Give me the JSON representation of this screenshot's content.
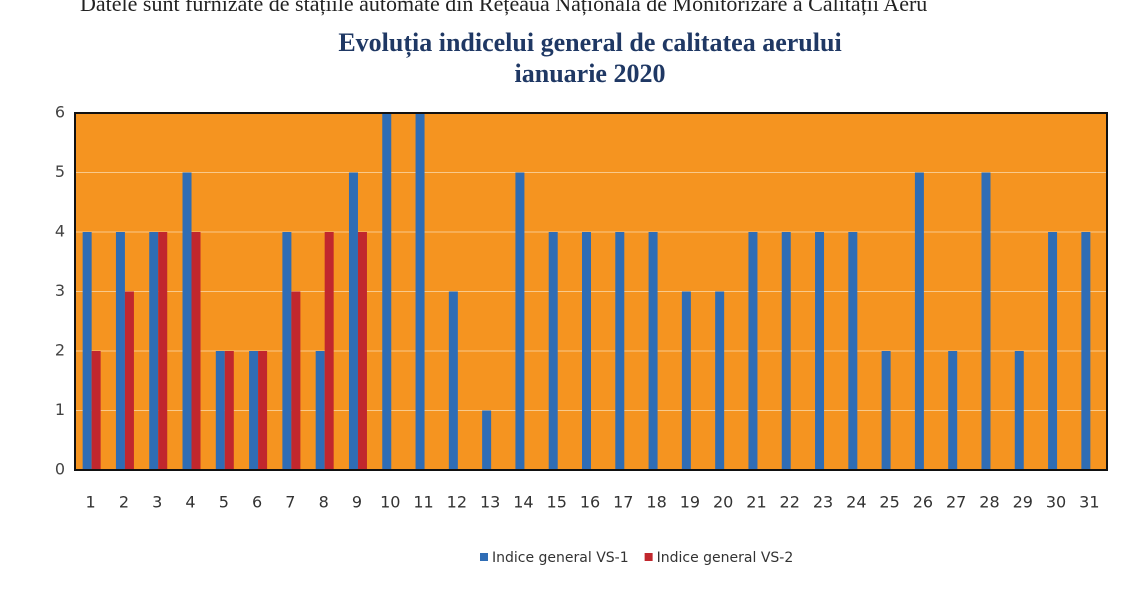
{
  "header_text": "Datele sunt furnizate de stațiile automate din Rețeaua Națională de Monitorizare a Calității Aeru",
  "chart_data": {
    "type": "bar",
    "title": "Evoluția indicelui general de calitatea aerului",
    "subtitle": "ianuarie 2020",
    "categories": [
      "1",
      "2",
      "3",
      "4",
      "5",
      "6",
      "7",
      "8",
      "9",
      "10",
      "11",
      "12",
      "13",
      "14",
      "15",
      "16",
      "17",
      "18",
      "19",
      "20",
      "21",
      "22",
      "23",
      "24",
      "25",
      "26",
      "27",
      "28",
      "29",
      "30",
      "31"
    ],
    "series": [
      {
        "name": "Indice general VS-1",
        "color": "#2f6db5",
        "values": [
          4,
          4,
          4,
          5,
          2,
          2,
          4,
          2,
          5,
          6,
          6,
          3,
          1,
          5,
          4,
          4,
          4,
          4,
          3,
          3,
          4,
          4,
          4,
          4,
          2,
          5,
          2,
          5,
          2,
          4,
          4
        ]
      },
      {
        "name": "Indice general VS-2",
        "color": "#c1272d",
        "values": [
          2,
          3,
          4,
          4,
          2,
          2,
          3,
          4,
          4,
          null,
          null,
          null,
          null,
          null,
          null,
          null,
          null,
          null,
          null,
          null,
          null,
          null,
          null,
          null,
          null,
          null,
          null,
          null,
          null,
          null,
          null
        ]
      }
    ],
    "ylim": [
      0,
      6
    ],
    "yticks": [
      0,
      1,
      2,
      3,
      4,
      5,
      6
    ],
    "grid": true,
    "legend": "bottom",
    "plot_color": "#f59420"
  }
}
